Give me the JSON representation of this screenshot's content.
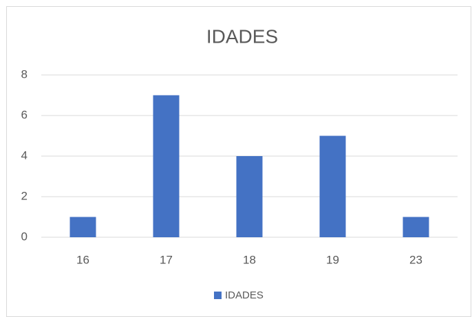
{
  "chart_data": {
    "type": "bar",
    "title": "IDADES",
    "categories": [
      "16",
      "17",
      "18",
      "19",
      "23"
    ],
    "series": [
      {
        "name": "IDADES",
        "color": "#4472c4",
        "values": [
          1,
          7,
          4,
          5,
          1
        ]
      }
    ],
    "ylim": [
      0,
      8
    ],
    "yticks": [
      0,
      2,
      4,
      6,
      8
    ],
    "grid": true,
    "legend": "bottom"
  }
}
